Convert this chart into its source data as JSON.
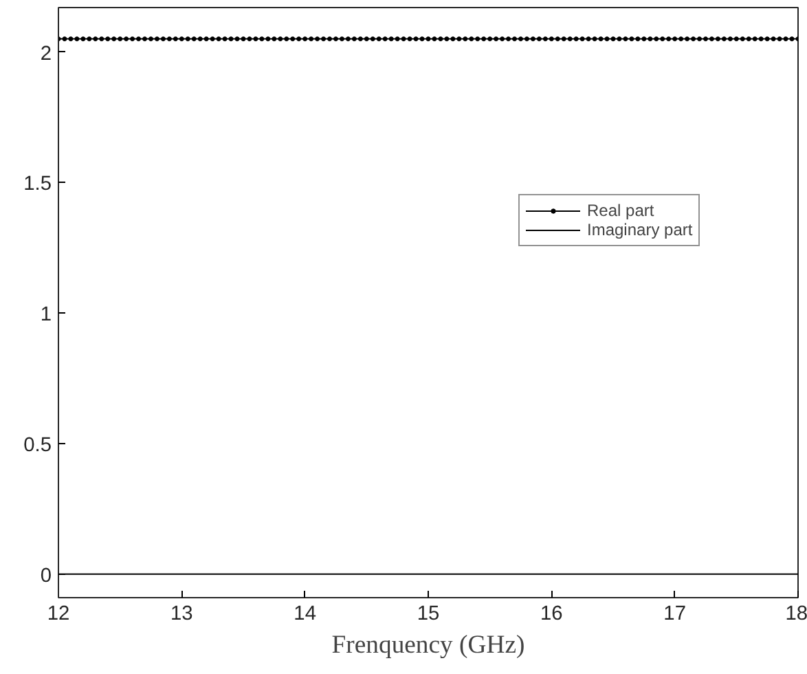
{
  "chart_data": {
    "type": "line",
    "xlabel": "Frenquency (GHz)",
    "xlim": [
      12,
      18
    ],
    "xticks": [
      12,
      13,
      14,
      15,
      16,
      17,
      18
    ],
    "ylim": [
      -0.09,
      2.17
    ],
    "yticks": [
      0,
      0.5,
      1,
      1.5,
      2
    ],
    "legend": "right",
    "grid": false,
    "x": [
      12,
      12.05,
      12.1,
      12.15,
      12.2,
      12.25,
      12.3,
      12.35,
      12.4,
      12.45,
      12.5,
      12.55,
      12.6,
      12.65,
      12.7,
      12.75,
      12.8,
      12.85,
      12.9,
      12.95,
      13,
      13.05,
      13.1,
      13.15,
      13.2,
      13.25,
      13.3,
      13.35,
      13.4,
      13.45,
      13.5,
      13.55,
      13.6,
      13.65,
      13.7,
      13.75,
      13.8,
      13.85,
      13.9,
      13.95,
      14,
      14.05,
      14.1,
      14.15,
      14.2,
      14.25,
      14.3,
      14.35,
      14.4,
      14.45,
      14.5,
      14.55,
      14.6,
      14.65,
      14.7,
      14.75,
      14.8,
      14.85,
      14.9,
      14.95,
      15,
      15.05,
      15.1,
      15.15,
      15.2,
      15.25,
      15.3,
      15.35,
      15.4,
      15.45,
      15.5,
      15.55,
      15.6,
      15.65,
      15.7,
      15.75,
      15.8,
      15.85,
      15.9,
      15.95,
      16,
      16.05,
      16.1,
      16.15,
      16.2,
      16.25,
      16.3,
      16.35,
      16.4,
      16.45,
      16.5,
      16.55,
      16.6,
      16.65,
      16.7,
      16.75,
      16.8,
      16.85,
      16.9,
      16.95,
      17,
      17.05,
      17.1,
      17.15,
      17.2,
      17.25,
      17.3,
      17.35,
      17.4,
      17.45,
      17.5,
      17.55,
      17.6,
      17.65,
      17.7,
      17.75,
      17.8,
      17.85,
      17.9,
      17.95,
      18
    ],
    "series": [
      {
        "name": "Real part",
        "color": "#000000",
        "marker": "circle",
        "values": [
          2.05,
          2.05,
          2.05,
          2.05,
          2.05,
          2.05,
          2.05,
          2.05,
          2.05,
          2.05,
          2.05,
          2.05,
          2.05,
          2.05,
          2.05,
          2.05,
          2.05,
          2.05,
          2.05,
          2.05,
          2.05,
          2.05,
          2.05,
          2.05,
          2.05,
          2.05,
          2.05,
          2.05,
          2.05,
          2.05,
          2.05,
          2.05,
          2.05,
          2.05,
          2.05,
          2.05,
          2.05,
          2.05,
          2.05,
          2.05,
          2.05,
          2.05,
          2.05,
          2.05,
          2.05,
          2.05,
          2.05,
          2.05,
          2.05,
          2.05,
          2.05,
          2.05,
          2.05,
          2.05,
          2.05,
          2.05,
          2.05,
          2.05,
          2.05,
          2.05,
          2.05,
          2.05,
          2.05,
          2.05,
          2.05,
          2.05,
          2.05,
          2.05,
          2.05,
          2.05,
          2.05,
          2.05,
          2.05,
          2.05,
          2.05,
          2.05,
          2.05,
          2.05,
          2.05,
          2.05,
          2.05,
          2.05,
          2.05,
          2.05,
          2.05,
          2.05,
          2.05,
          2.05,
          2.05,
          2.05,
          2.05,
          2.05,
          2.05,
          2.05,
          2.05,
          2.05,
          2.05,
          2.05,
          2.05,
          2.05,
          2.05,
          2.05,
          2.05,
          2.05,
          2.05,
          2.05,
          2.05,
          2.05,
          2.05,
          2.05,
          2.05,
          2.05,
          2.05,
          2.05,
          2.05,
          2.05,
          2.05,
          2.05,
          2.05,
          2.05,
          2.05
        ]
      },
      {
        "name": "Imaginary part",
        "color": "#000000",
        "marker": "none",
        "values": [
          0,
          0,
          0,
          0,
          0,
          0,
          0,
          0,
          0,
          0,
          0,
          0,
          0,
          0,
          0,
          0,
          0,
          0,
          0,
          0,
          0,
          0,
          0,
          0,
          0,
          0,
          0,
          0,
          0,
          0,
          0,
          0,
          0,
          0,
          0,
          0,
          0,
          0,
          0,
          0,
          0,
          0,
          0,
          0,
          0,
          0,
          0,
          0,
          0,
          0,
          0,
          0,
          0,
          0,
          0,
          0,
          0,
          0,
          0,
          0,
          0,
          0,
          0,
          0,
          0,
          0,
          0,
          0,
          0,
          0,
          0,
          0,
          0,
          0,
          0,
          0,
          0,
          0,
          0,
          0,
          0,
          0,
          0,
          0,
          0,
          0,
          0,
          0,
          0,
          0,
          0,
          0,
          0,
          0,
          0,
          0,
          0,
          0,
          0,
          0,
          0,
          0,
          0,
          0,
          0,
          0,
          0,
          0,
          0,
          0,
          0,
          0,
          0,
          0,
          0,
          0,
          0,
          0,
          0,
          0,
          0
        ]
      }
    ]
  }
}
